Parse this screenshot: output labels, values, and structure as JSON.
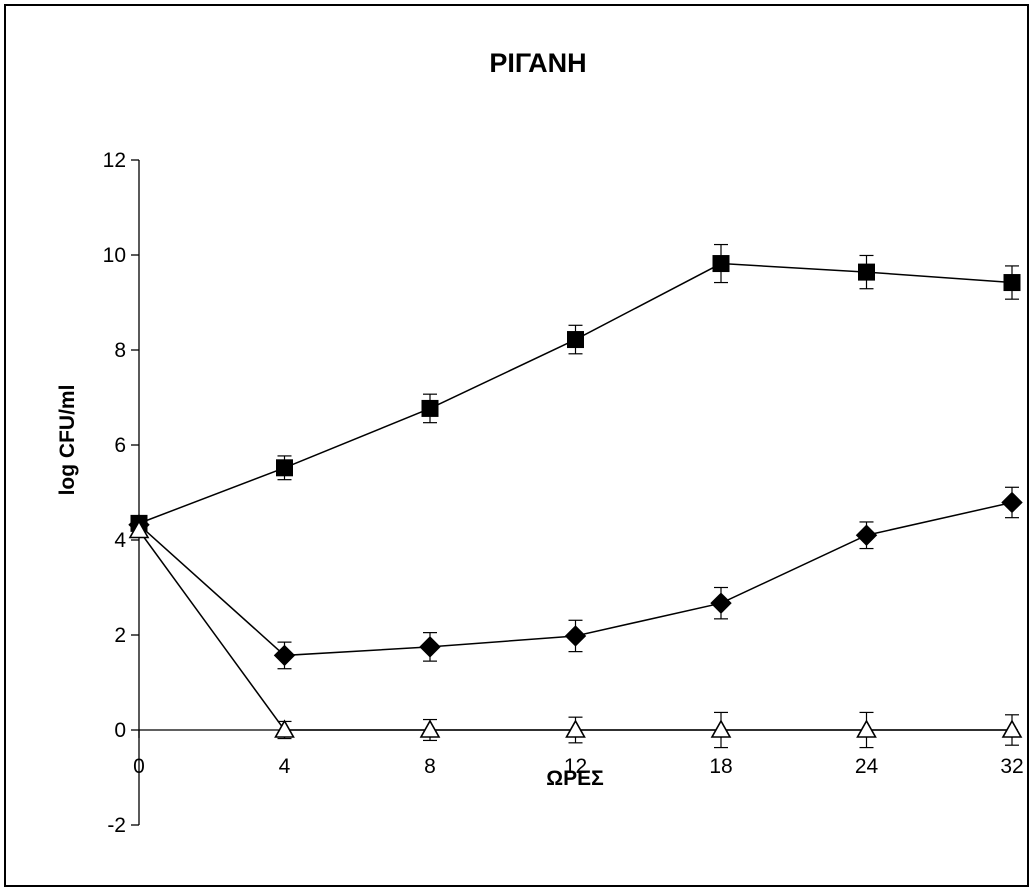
{
  "chart_data": {
    "type": "line",
    "title": "ΡΙΓΑΝΗ",
    "xlabel": "ΩΡΕΣ",
    "ylabel": "log CFU/ml",
    "x_categories": [
      "0",
      "4",
      "8",
      "12",
      "18",
      "24",
      "32"
    ],
    "ylim": [
      -2,
      12
    ],
    "y_ticks": [
      -2,
      0,
      2,
      4,
      6,
      8,
      10,
      12
    ],
    "grid": false,
    "legend": "none",
    "series": [
      {
        "marker": "square",
        "marker_color": "#000000",
        "values": [
          4.35,
          5.52,
          6.77,
          8.22,
          9.82,
          9.64,
          9.42
        ],
        "errors": [
          0.15,
          0.25,
          0.3,
          0.3,
          0.4,
          0.35,
          0.35
        ]
      },
      {
        "marker": "diamond",
        "marker_color": "#000000",
        "values": [
          4.32,
          1.57,
          1.75,
          1.98,
          2.67,
          4.1,
          4.79
        ],
        "errors": [
          0.1,
          0.28,
          0.3,
          0.33,
          0.33,
          0.28,
          0.32
        ]
      },
      {
        "marker": "triangle-open",
        "marker_color": "#ffffff",
        "values": [
          4.2,
          0.0,
          0.0,
          0.0,
          0.0,
          0.0,
          0.0
        ],
        "errors": [
          0.1,
          0.18,
          0.22,
          0.27,
          0.37,
          0.37,
          0.32
        ]
      }
    ]
  }
}
